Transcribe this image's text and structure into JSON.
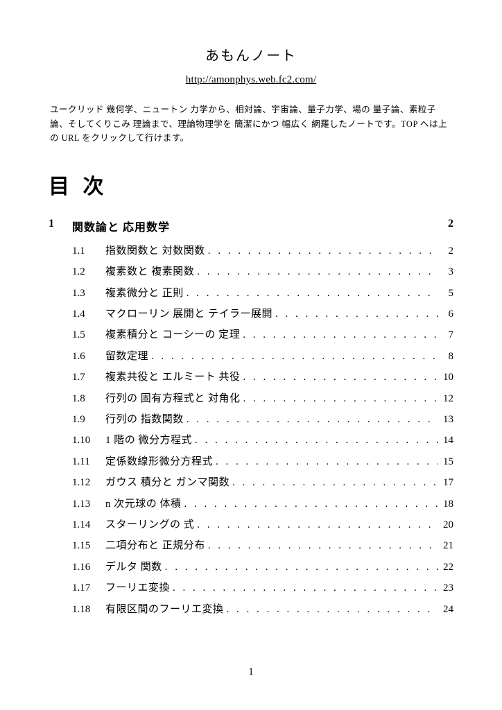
{
  "title": "あもんノート",
  "url": "http://amonphys.web.fc2.com/",
  "intro": "ユークリッド 幾何学、ニュートン 力学から、相対論、宇宙論、量子力学、場の 量子論、素粒子論、そしてくりこみ 理論まで、理論物理学を 簡潔にかつ 幅広く 網羅したノートです。TOP へは上の URL をクリックして行けます。",
  "toc_heading": "目 次",
  "chapter": {
    "num": "1",
    "title": "関数論と 応用数学",
    "page": "2"
  },
  "sections": [
    {
      "num": "1.1",
      "title": "指数関数と 対数関数",
      "page": "2"
    },
    {
      "num": "1.2",
      "title": "複素数と 複素関数",
      "page": "3"
    },
    {
      "num": "1.3",
      "title": "複素微分と 正則",
      "page": "5"
    },
    {
      "num": "1.4",
      "title": "マクローリン 展開と テイラー展開",
      "page": "6"
    },
    {
      "num": "1.5",
      "title": "複素積分と コーシーの 定理",
      "page": "7"
    },
    {
      "num": "1.6",
      "title": "留数定理",
      "page": "8"
    },
    {
      "num": "1.7",
      "title": "複素共役と エルミート 共役",
      "page": "10"
    },
    {
      "num": "1.8",
      "title": "行列の 固有方程式と 対角化",
      "page": "12"
    },
    {
      "num": "1.9",
      "title": "行列の 指数関数",
      "page": "13"
    },
    {
      "num": "1.10",
      "title": "1 階の 微分方程式",
      "page": "14"
    },
    {
      "num": "1.11",
      "title": "定係数線形微分方程式",
      "page": "15"
    },
    {
      "num": "1.12",
      "title": "ガウス 積分と ガンマ関数",
      "page": "17"
    },
    {
      "num": "1.13",
      "title": "n 次元球の 体積",
      "page": "18"
    },
    {
      "num": "1.14",
      "title": "スターリングの 式",
      "page": "20"
    },
    {
      "num": "1.15",
      "title": "二項分布と 正規分布",
      "page": "21"
    },
    {
      "num": "1.16",
      "title": "デルタ 関数",
      "page": "22"
    },
    {
      "num": "1.17",
      "title": "フーリエ変換",
      "page": "23"
    },
    {
      "num": "1.18",
      "title": "有限区間のフーリエ変換",
      "page": "24"
    }
  ],
  "page_number": "1",
  "leader_dots": ". . . . . . . . . . . . . . . . . . . . . . . . . . . . . . . . . . . . . . . . . . . . . ."
}
